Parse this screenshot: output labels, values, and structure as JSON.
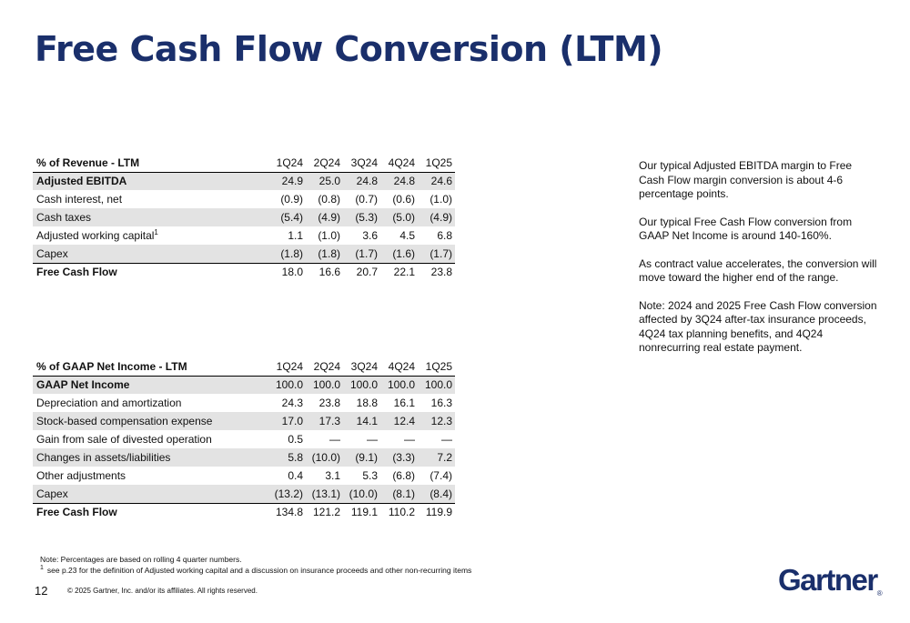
{
  "title": "Free Cash Flow Conversion (LTM)",
  "periods": [
    "1Q24",
    "2Q24",
    "3Q24",
    "4Q24",
    "1Q25"
  ],
  "table1": {
    "header": "% of Revenue - LTM",
    "rows": [
      {
        "label": "Adjusted EBITDA",
        "values": [
          "24.9",
          "25.0",
          "24.8",
          "24.8",
          "24.6"
        ]
      },
      {
        "label": "Cash interest, net",
        "values": [
          "(0.9)",
          "(0.8)",
          "(0.7)",
          "(0.6)",
          "(1.0)"
        ]
      },
      {
        "label": "Cash taxes",
        "values": [
          "(5.4)",
          "(4.9)",
          "(5.3)",
          "(5.0)",
          "(4.9)"
        ]
      },
      {
        "label": "Adjusted working capital",
        "sup": "1",
        "values": [
          "1.1",
          "(1.0)",
          "3.6",
          "4.5",
          "6.8"
        ]
      },
      {
        "label": "Capex",
        "values": [
          "(1.8)",
          "(1.8)",
          "(1.7)",
          "(1.6)",
          "(1.7)"
        ]
      },
      {
        "label": "Free Cash Flow",
        "values": [
          "18.0",
          "16.6",
          "20.7",
          "22.1",
          "23.8"
        ]
      }
    ]
  },
  "table2": {
    "header": "% of GAAP Net Income - LTM",
    "rows": [
      {
        "label": "GAAP Net Income",
        "values": [
          "100.0",
          "100.0",
          "100.0",
          "100.0",
          "100.0"
        ]
      },
      {
        "label": "Depreciation and amortization",
        "values": [
          "24.3",
          "23.8",
          "18.8",
          "16.1",
          "16.3"
        ]
      },
      {
        "label": "Stock-based compensation expense",
        "values": [
          "17.0",
          "17.3",
          "14.1",
          "12.4",
          "12.3"
        ]
      },
      {
        "label": "Gain from sale of divested operation",
        "values": [
          "0.5",
          "—",
          "—",
          "—",
          "—"
        ]
      },
      {
        "label": "Changes in assets/liabilities",
        "values": [
          "5.8",
          "(10.0)",
          "(9.1)",
          "(3.3)",
          "7.2"
        ]
      },
      {
        "label": "Other adjustments",
        "values": [
          "0.4",
          "3.1",
          "5.3",
          "(6.8)",
          "(7.4)"
        ]
      },
      {
        "label": "Capex",
        "values": [
          "(13.2)",
          "(13.1)",
          "(10.0)",
          "(8.1)",
          "(8.4)"
        ]
      },
      {
        "label": "Free Cash Flow",
        "values": [
          "134.8",
          "121.2",
          "119.1",
          "110.2",
          "119.9"
        ]
      }
    ]
  },
  "commentary": [
    "Our typical Adjusted EBITDA margin to Free Cash Flow margin conversion is about 4-6 percentage points.",
    "Our typical Free Cash Flow conversion from GAAP Net Income is around 140-160%.",
    "As contract value accelerates, the conversion will move toward the higher end of the range.",
    "Note: 2024 and 2025 Free Cash Flow conversion affected by 3Q24 after-tax insurance proceeds, 4Q24 tax planning benefits, and 4Q24 nonrecurring real estate payment."
  ],
  "footnotes": {
    "note": "Note: Percentages are based on rolling 4 quarter numbers.",
    "marker": "1",
    "text": "see p.23 for the definition of Adjusted working capital and a discussion on insurance proceeds and other non-recurring items"
  },
  "page_number": "12",
  "copyright": "© 2025 Gartner, Inc. and/or its affiliates. All rights reserved.",
  "logo": {
    "text": "Gartner",
    "mark": "®"
  }
}
